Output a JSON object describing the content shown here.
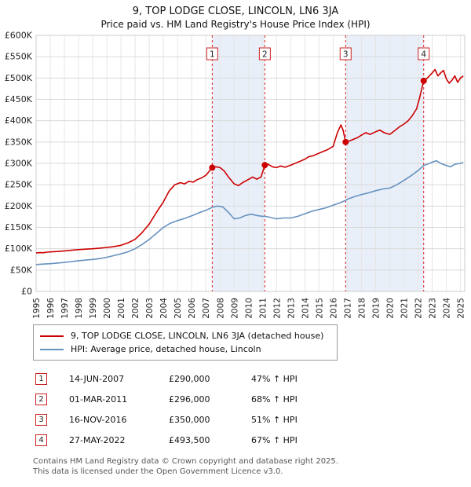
{
  "chart_data": {
    "type": "line",
    "title": "9, TOP LODGE CLOSE, LINCOLN, LN6 3JA",
    "subtitle": "Price paid vs. HM Land Registry's House Price Index (HPI)",
    "xlabel": "",
    "ylabel": "",
    "xlim": [
      1995,
      2025.3
    ],
    "ylim": [
      0,
      600000
    ],
    "grid": true,
    "legend_position": "below",
    "y_ticks": [
      "£0",
      "£50K",
      "£100K",
      "£150K",
      "£200K",
      "£250K",
      "£300K",
      "£350K",
      "£400K",
      "£450K",
      "£500K",
      "£550K",
      "£600K"
    ],
    "x_ticks": [
      1995,
      1996,
      1997,
      1998,
      1999,
      2000,
      2001,
      2002,
      2003,
      2004,
      2005,
      2006,
      2007,
      2008,
      2009,
      2010,
      2011,
      2012,
      2013,
      2014,
      2015,
      2016,
      2017,
      2018,
      2019,
      2020,
      2021,
      2022,
      2023,
      2024,
      2025
    ],
    "series": [
      {
        "name": "9, TOP LODGE CLOSE, LINCOLN, LN6 3JA (detached house)",
        "color": "#cc0000",
        "points": [
          [
            1995.0,
            90000
          ],
          [
            1995.25,
            91000
          ],
          [
            1995.5,
            90500
          ],
          [
            1995.75,
            92000
          ],
          [
            1996.0,
            92500
          ],
          [
            1996.5,
            93500
          ],
          [
            1997.0,
            95000
          ],
          [
            1997.5,
            96500
          ],
          [
            1998.0,
            98000
          ],
          [
            1998.5,
            99000
          ],
          [
            1999.0,
            100000
          ],
          [
            1999.5,
            101500
          ],
          [
            2000.0,
            103000
          ],
          [
            2000.5,
            105000
          ],
          [
            2001.0,
            108000
          ],
          [
            2001.5,
            114000
          ],
          [
            2002.0,
            122000
          ],
          [
            2002.5,
            138000
          ],
          [
            2003.0,
            158000
          ],
          [
            2003.5,
            185000
          ],
          [
            2004.0,
            210000
          ],
          [
            2004.4,
            235000
          ],
          [
            2004.8,
            250000
          ],
          [
            2005.2,
            255000
          ],
          [
            2005.5,
            252000
          ],
          [
            2005.8,
            258000
          ],
          [
            2006.1,
            256000
          ],
          [
            2006.4,
            262000
          ],
          [
            2006.7,
            266000
          ],
          [
            2007.0,
            272000
          ],
          [
            2007.2,
            280000
          ],
          [
            2007.45,
            290000
          ],
          [
            2007.7,
            292000
          ],
          [
            2008.0,
            290000
          ],
          [
            2008.3,
            282000
          ],
          [
            2008.6,
            268000
          ],
          [
            2009.0,
            252000
          ],
          [
            2009.3,
            248000
          ],
          [
            2009.6,
            255000
          ],
          [
            2010.0,
            262000
          ],
          [
            2010.3,
            268000
          ],
          [
            2010.6,
            263000
          ],
          [
            2010.9,
            268000
          ],
          [
            2011.17,
            296000
          ],
          [
            2011.4,
            298000
          ],
          [
            2011.7,
            292000
          ],
          [
            2012.0,
            290000
          ],
          [
            2012.3,
            294000
          ],
          [
            2012.6,
            291000
          ],
          [
            2013.0,
            296000
          ],
          [
            2013.3,
            300000
          ],
          [
            2013.6,
            304000
          ],
          [
            2014.0,
            310000
          ],
          [
            2014.3,
            316000
          ],
          [
            2014.6,
            318000
          ],
          [
            2015.0,
            324000
          ],
          [
            2015.3,
            328000
          ],
          [
            2015.6,
            332000
          ],
          [
            2016.0,
            340000
          ],
          [
            2016.3,
            372000
          ],
          [
            2016.55,
            390000
          ],
          [
            2016.7,
            378000
          ],
          [
            2016.88,
            350000
          ],
          [
            2017.1,
            352000
          ],
          [
            2017.4,
            356000
          ],
          [
            2017.7,
            360000
          ],
          [
            2018.0,
            366000
          ],
          [
            2018.3,
            372000
          ],
          [
            2018.6,
            368000
          ],
          [
            2019.0,
            374000
          ],
          [
            2019.3,
            378000
          ],
          [
            2019.6,
            372000
          ],
          [
            2020.0,
            368000
          ],
          [
            2020.4,
            378000
          ],
          [
            2020.7,
            386000
          ],
          [
            2021.0,
            392000
          ],
          [
            2021.3,
            400000
          ],
          [
            2021.6,
            412000
          ],
          [
            2021.9,
            428000
          ],
          [
            2022.1,
            452000
          ],
          [
            2022.4,
            493500
          ],
          [
            2022.6,
            498000
          ],
          [
            2022.8,
            505000
          ],
          [
            2023.0,
            512000
          ],
          [
            2023.2,
            520000
          ],
          [
            2023.4,
            505000
          ],
          [
            2023.6,
            512000
          ],
          [
            2023.8,
            518000
          ],
          [
            2024.0,
            498000
          ],
          [
            2024.2,
            488000
          ],
          [
            2024.4,
            495000
          ],
          [
            2024.6,
            505000
          ],
          [
            2024.8,
            490000
          ],
          [
            2025.0,
            500000
          ],
          [
            2025.2,
            505000
          ]
        ]
      },
      {
        "name": "HPI: Average price, detached house, Lincoln",
        "color": "#6692c0",
        "points": [
          [
            1995.0,
            63000
          ],
          [
            1995.5,
            64000
          ],
          [
            1996.0,
            65000
          ],
          [
            1996.5,
            66500
          ],
          [
            1997.0,
            68000
          ],
          [
            1997.5,
            70000
          ],
          [
            1998.0,
            72000
          ],
          [
            1998.5,
            73500
          ],
          [
            1999.0,
            75000
          ],
          [
            1999.5,
            77000
          ],
          [
            2000.0,
            80000
          ],
          [
            2000.5,
            84000
          ],
          [
            2001.0,
            88000
          ],
          [
            2001.5,
            93000
          ],
          [
            2002.0,
            100000
          ],
          [
            2002.5,
            110000
          ],
          [
            2003.0,
            122000
          ],
          [
            2003.5,
            136000
          ],
          [
            2004.0,
            150000
          ],
          [
            2004.5,
            160000
          ],
          [
            2005.0,
            166000
          ],
          [
            2005.5,
            171000
          ],
          [
            2006.0,
            177000
          ],
          [
            2006.5,
            184000
          ],
          [
            2007.0,
            190000
          ],
          [
            2007.45,
            197000
          ],
          [
            2007.8,
            200000
          ],
          [
            2008.2,
            198000
          ],
          [
            2008.6,
            185000
          ],
          [
            2009.0,
            170000
          ],
          [
            2009.4,
            172000
          ],
          [
            2009.8,
            178000
          ],
          [
            2010.2,
            181000
          ],
          [
            2010.6,
            178000
          ],
          [
            2011.0,
            176000
          ],
          [
            2011.17,
            176000
          ],
          [
            2011.5,
            174000
          ],
          [
            2012.0,
            170000
          ],
          [
            2012.5,
            172000
          ],
          [
            2013.0,
            172000
          ],
          [
            2013.5,
            176000
          ],
          [
            2014.0,
            182000
          ],
          [
            2014.5,
            188000
          ],
          [
            2015.0,
            192000
          ],
          [
            2015.5,
            196000
          ],
          [
            2016.0,
            202000
          ],
          [
            2016.5,
            208000
          ],
          [
            2016.88,
            213000
          ],
          [
            2017.0,
            216000
          ],
          [
            2017.5,
            222000
          ],
          [
            2018.0,
            227000
          ],
          [
            2018.5,
            231000
          ],
          [
            2019.0,
            236000
          ],
          [
            2019.5,
            240000
          ],
          [
            2020.0,
            242000
          ],
          [
            2020.5,
            250000
          ],
          [
            2021.0,
            260000
          ],
          [
            2021.5,
            271000
          ],
          [
            2022.0,
            283000
          ],
          [
            2022.4,
            295000
          ],
          [
            2022.8,
            300000
          ],
          [
            2023.0,
            303000
          ],
          [
            2023.3,
            306000
          ],
          [
            2023.6,
            300000
          ],
          [
            2024.0,
            295000
          ],
          [
            2024.3,
            292000
          ],
          [
            2024.6,
            298000
          ],
          [
            2025.0,
            300000
          ],
          [
            2025.2,
            302000
          ]
        ]
      }
    ],
    "sales": [
      {
        "num": "1",
        "x": 2007.45,
        "y": 290000
      },
      {
        "num": "2",
        "x": 2011.17,
        "y": 296000
      },
      {
        "num": "3",
        "x": 2016.88,
        "y": 350000
      },
      {
        "num": "4",
        "x": 2022.4,
        "y": 493500
      }
    ],
    "bands": [
      [
        2007.45,
        2011.17
      ],
      [
        2016.88,
        2022.4
      ]
    ],
    "colors": {
      "grid_h": "#d9d9d9",
      "grid_v": "#e6e6e6",
      "band": "#e9eff9",
      "sale_line": "#dd2222",
      "plot_border": "#cccccc"
    }
  },
  "legend": {
    "entries": [
      {
        "label": "9, TOP LODGE CLOSE, LINCOLN, LN6 3JA (detached house)",
        "color": "#cc0000"
      },
      {
        "label": "HPI: Average price, detached house, Lincoln",
        "color": "#6692c0"
      }
    ]
  },
  "table": {
    "rows": [
      {
        "num": "1",
        "date": "14-JUN-2007",
        "price": "£290,000",
        "hpi": "47% ↑ HPI"
      },
      {
        "num": "2",
        "date": "01-MAR-2011",
        "price": "£296,000",
        "hpi": "68% ↑ HPI"
      },
      {
        "num": "3",
        "date": "16-NOV-2016",
        "price": "£350,000",
        "hpi": "51% ↑ HPI"
      },
      {
        "num": "4",
        "date": "27-MAY-2022",
        "price": "£493,500",
        "hpi": "67% ↑ HPI"
      }
    ]
  },
  "footer": {
    "line1": "Contains HM Land Registry data © Crown copyright and database right 2025.",
    "line2": "This data is licensed under the Open Government Licence v3.0."
  }
}
